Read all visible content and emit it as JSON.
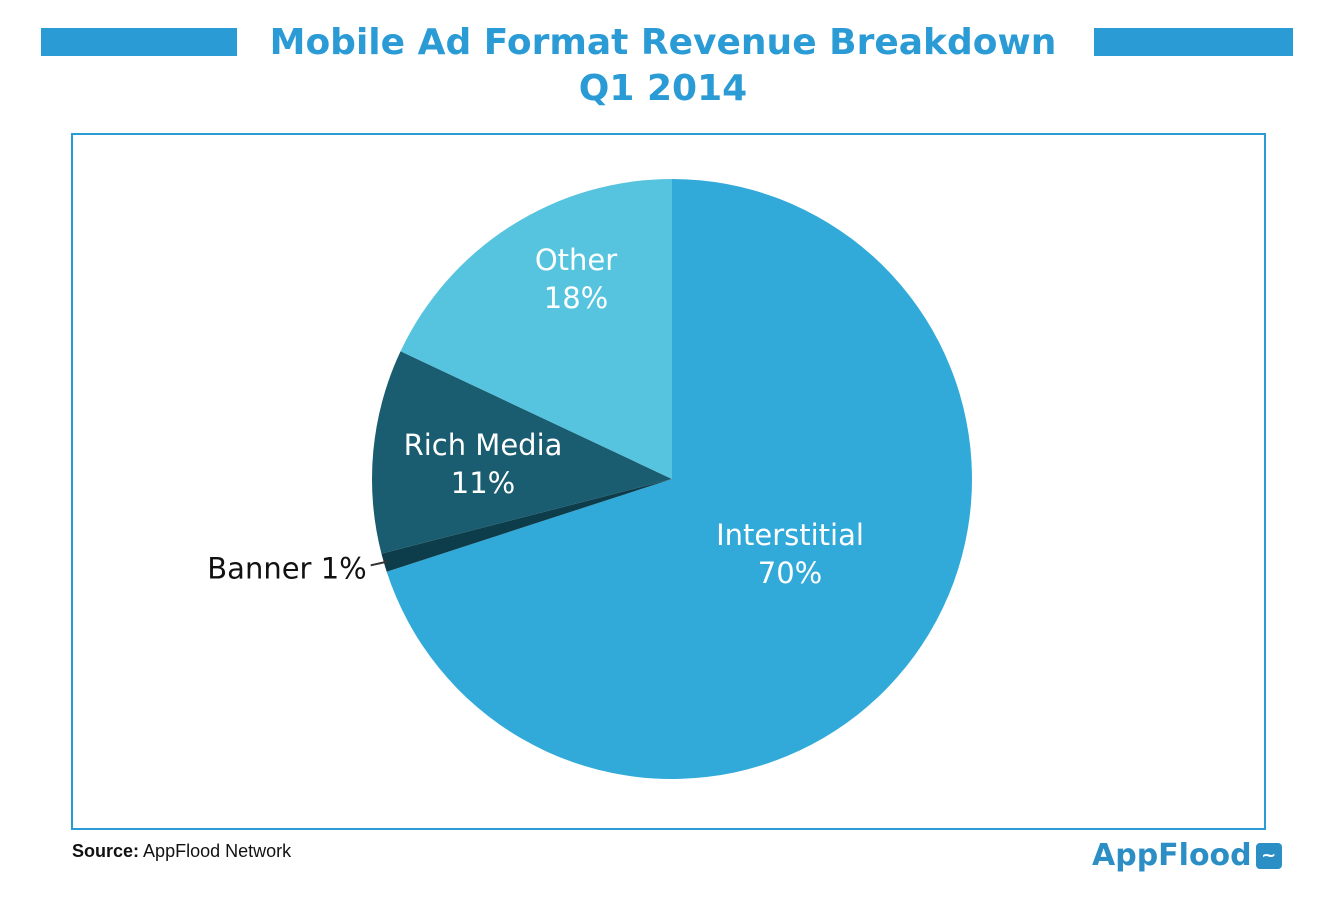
{
  "header": {
    "title_line1": "Mobile Ad Format Revenue Breakdown",
    "title_line2": "Q1 2014"
  },
  "footer": {
    "source_label": "Source:",
    "source_text": "AppFlood Network",
    "logo_text": "AppFlood"
  },
  "chart_data": {
    "type": "pie",
    "title": "Mobile Ad Format Revenue Breakdown Q1 2014",
    "start_angle": "12 o'clock, clockwise",
    "slices": [
      {
        "label": "Interstitial",
        "value": 70,
        "display": "70%",
        "color": "#31aada"
      },
      {
        "label": "Banner",
        "value": 1,
        "display": "1%",
        "color": "#0d3d4a"
      },
      {
        "label": "Rich Media",
        "value": 11,
        "display": "11%",
        "color": "#1a5c70"
      },
      {
        "label": "Other",
        "value": 18,
        "display": "18%",
        "color": "#56c4df"
      }
    ]
  }
}
